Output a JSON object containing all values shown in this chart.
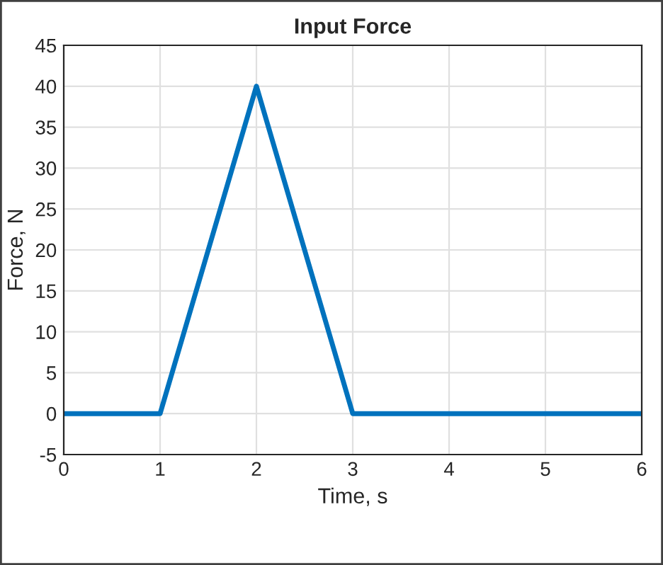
{
  "chart_data": {
    "type": "line",
    "title": "Input Force",
    "xlabel": "Time, s",
    "ylabel": "Force, N",
    "x": [
      0,
      1,
      2,
      3,
      6
    ],
    "series": [
      {
        "color": "#0072bd",
        "values": [
          0,
          0,
          40,
          0,
          0
        ]
      }
    ],
    "xlim": [
      0,
      6
    ],
    "xticks": [
      0,
      1,
      2,
      3,
      4,
      5,
      6
    ],
    "ylim": [
      -5,
      45
    ],
    "yticks": [
      -5,
      0,
      5,
      10,
      15,
      20,
      25,
      30,
      35,
      40,
      45
    ],
    "grid": true,
    "line_style": "solid",
    "marker": "none"
  }
}
